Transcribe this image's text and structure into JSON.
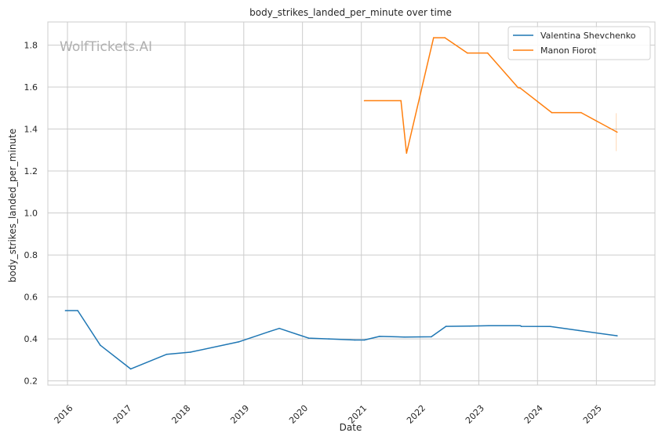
{
  "chart_data": {
    "type": "line",
    "title": "body_strikes_landed_per_minute over time",
    "xlabel": "Date",
    "ylabel": "body_strikes_landed_per_minute",
    "watermark": "WolfTickets.AI",
    "x_range": [
      "2015-09-01",
      "2025-12-31"
    ],
    "ylim": [
      0.18,
      1.91
    ],
    "x_ticks": [
      "2016",
      "2017",
      "2018",
      "2019",
      "2020",
      "2021",
      "2022",
      "2023",
      "2024",
      "2025"
    ],
    "y_ticks": [
      0.2,
      0.4,
      0.6,
      0.8,
      1.0,
      1.2,
      1.4,
      1.6,
      1.8
    ],
    "grid": true,
    "legend_position": "top-right",
    "series": [
      {
        "name": "Valentina Shevchenko",
        "color": "#1f77b4",
        "points": [
          [
            "2015-12-19",
            0.535
          ],
          [
            "2016-03-05",
            0.535
          ],
          [
            "2016-07-23",
            0.37
          ],
          [
            "2017-01-28",
            0.257
          ],
          [
            "2017-09-09",
            0.327
          ],
          [
            "2018-02-03",
            0.337
          ],
          [
            "2018-11-30",
            0.386
          ],
          [
            "2019-06-08",
            0.435
          ],
          [
            "2019-08-10",
            0.45
          ],
          [
            "2020-02-08",
            0.404
          ],
          [
            "2020-06-13",
            0.4
          ],
          [
            "2020-11-21",
            0.395
          ],
          [
            "2021-01-20",
            0.395
          ],
          [
            "2021-04-24",
            0.412
          ],
          [
            "2021-09-25",
            0.409
          ],
          [
            "2022-03-12",
            0.41
          ],
          [
            "2022-06-11",
            0.46
          ],
          [
            "2022-11-05",
            0.461
          ],
          [
            "2023-03-04",
            0.463
          ],
          [
            "2023-09-16",
            0.463
          ],
          [
            "2023-09-23",
            0.46
          ],
          [
            "2024-03-20",
            0.459
          ],
          [
            "2024-09-14",
            0.44
          ],
          [
            "2025-05-10",
            0.415
          ]
        ]
      },
      {
        "name": "Manon Fiorot",
        "color": "#ff7f0e",
        "points": [
          [
            "2021-01-20",
            1.535
          ],
          [
            "2021-09-04",
            1.535
          ],
          [
            "2021-10-09",
            1.285
          ],
          [
            "2022-03-26",
            1.835
          ],
          [
            "2022-06-04",
            1.835
          ],
          [
            "2022-10-22",
            1.762
          ],
          [
            "2023-02-25",
            1.762
          ],
          [
            "2023-09-02",
            1.597
          ],
          [
            "2023-09-16",
            1.595
          ],
          [
            "2024-03-30",
            1.478
          ],
          [
            "2024-09-28",
            1.478
          ],
          [
            "2025-05-10",
            1.385
          ]
        ]
      }
    ]
  }
}
